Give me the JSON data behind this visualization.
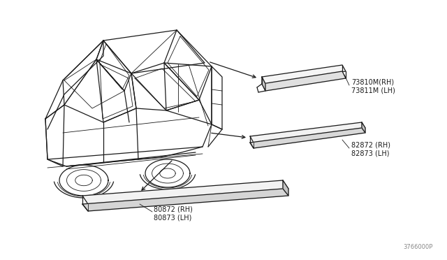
{
  "background_color": "#ffffff",
  "diagram_id": "3766000P",
  "line_color": "#1a1a1a",
  "text_color": "#1a1a1a",
  "label_p1_line1": "73810M(RH)",
  "label_p1_line2": "73811M (LH)",
  "label_p2_line1": "82872 (RH)",
  "label_p2_line2": "82873 (LH)",
  "label_p3_line1": "80872 (RH)",
  "label_p3_line2": "80873 (LH)",
  "fontsize_label": 7,
  "lw_main": 0.9,
  "lw_thin": 0.6
}
